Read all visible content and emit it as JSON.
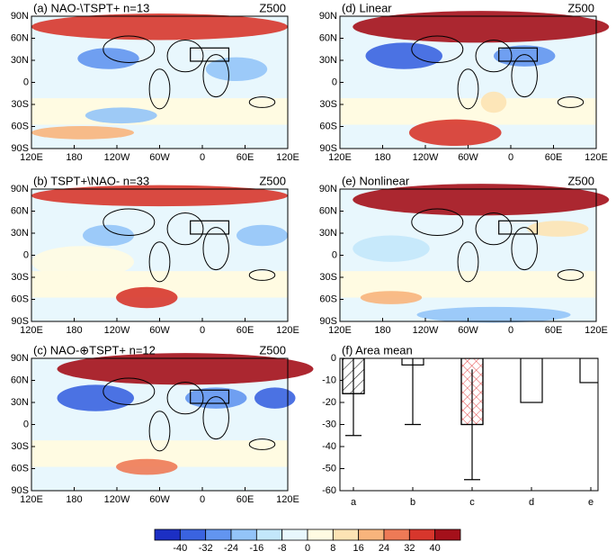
{
  "maps": [
    {
      "title": "(a) NAO-\\TSPT+  n=13",
      "label": "Z500"
    },
    {
      "title": "(b) TSPT+\\NAO-  n=33",
      "label": "Z500"
    },
    {
      "title": "(c) NAO-⊕TSPT+  n=12",
      "label": "Z500"
    },
    {
      "title": "(d) Linear",
      "label": "Z500"
    },
    {
      "title": "(e) Nonlinear",
      "label": "Z500"
    }
  ],
  "map_xticks": [
    "120E",
    "180",
    "120W",
    "60W",
    "0",
    "60E",
    "120E"
  ],
  "map_yticks": [
    "90N",
    "60N",
    "30N",
    "0",
    "30S",
    "60S",
    "90S"
  ],
  "chart_data": {
    "type": "bar",
    "title": "(f) Area mean",
    "categories": [
      "a",
      "b",
      "c",
      "d",
      "e"
    ],
    "values": [
      -16,
      -3,
      -30,
      -20,
      -11
    ],
    "errors": [
      19,
      27,
      25,
      null,
      null
    ],
    "hatch": [
      "diagonal",
      null,
      "cross",
      null,
      null
    ],
    "ylim": [
      -60,
      0
    ],
    "yticks": [
      0,
      -10,
      -20,
      -30,
      -40,
      -50,
      -60
    ]
  },
  "colorbar": {
    "ticks": [
      -40,
      -32,
      -24,
      -16,
      -8,
      0,
      8,
      16,
      24,
      32,
      40
    ],
    "colors": [
      "#1c2fc4",
      "#3a63e0",
      "#6295f0",
      "#93c4f8",
      "#c3e7fb",
      "#e8f7fd",
      "#fffbe2",
      "#fde3b4",
      "#f8b47c",
      "#ee7a56",
      "#d7362c",
      "#a4101a"
    ]
  }
}
